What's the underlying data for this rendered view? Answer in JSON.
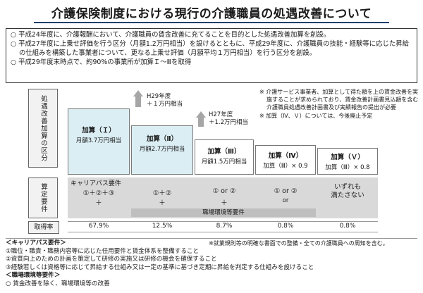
{
  "title": "介護保険制度における現行の介護職員の処遇改善について",
  "notice": [
    "○ 平成24年度に、介護報酬において、介護職員の賃金改善に充てることを目的とした処遇改善加算を創設。",
    "○ 平成27年度に上乗せ評価を行う区分（月額1.2万円相当）を設けるとともに、平成29年度に、介護職員の技能・経験等に応じた昇給の仕組みを構築した事業者について、更なる上乗せ評価（月額平均１万円相当）を行う区分を創設。",
    "○ 平成29年度末時点で、約90%の事業所が加算Ｉ～Ⅲを取得"
  ],
  "labels": {
    "category": "処遇改善加算の区分",
    "requirements": "算定要件",
    "rate": "取得率"
  },
  "tiers": [
    {
      "name": "加算（Ｉ）",
      "amount": "月額3.7万円相当"
    },
    {
      "name": "加算（Ⅱ）",
      "amount": "月額2.7万円相当"
    },
    {
      "name": "加算（Ⅲ）",
      "amount": "月額1.5万円相当"
    },
    {
      "name": "加算（Ⅳ）",
      "amount": "加算（Ⅲ）× 0.9"
    },
    {
      "name": "加算（Ｖ）",
      "amount": "加算（Ⅲ）× 0.8"
    }
  ],
  "arrows": [
    {
      "year": "H29年度",
      "amount": "＋１万円相当"
    },
    {
      "year": "H27年度",
      "amount": "＋1.2万円相当"
    }
  ],
  "side_notes": [
    "※ 介護サービス事業者、加算として得た額を上の賃金改善を実施することが求められており、賃金改善計画書見込額を含む介護職員処遇改善計画書及び実績報告の提出が必要",
    "※ 加算（Ⅳ、Ｖ）については、今後廃止予定"
  ],
  "requirements": {
    "career_path_title": "キャリアパス要件",
    "cells": [
      "①＋②＋③",
      "①＋②",
      "① or ②",
      "① or ②",
      "いずれも\n満たさない"
    ],
    "plus": "＋",
    "or": "or",
    "env_title": "職場環境等要件"
  },
  "rates": [
    "67.9%",
    "12.5%",
    "8.7%",
    "0.8%",
    "0.8%"
  ],
  "footnote": "※就業規則等の明確な書面での整備・全ての介護職員への周知を含む。",
  "legend": {
    "career_header": "＜キャリアパス要件＞",
    "items": [
      "①職位・職責・職務内容等に応じた任用要件と賃金体系を整備すること",
      "②資質向上のための計画を策定して研修の実施又は研修の機会を確保すること",
      "③経験若しくは資格等に応じて昇給する仕組み又は一定の基準に基づき定期に昇給を判定する仕組みを設けること"
    ],
    "env_header": "＜職場環境等要件＞",
    "env_item": "○ 賃金改善を除く、職場環境等の改善"
  }
}
